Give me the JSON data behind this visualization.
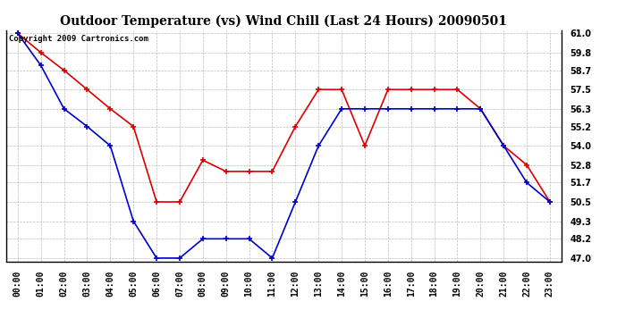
{
  "title": "Outdoor Temperature (vs) Wind Chill (Last 24 Hours) 20090501",
  "copyright": "Copyright 2009 Cartronics.com",
  "x_labels": [
    "00:00",
    "01:00",
    "02:00",
    "03:00",
    "04:00",
    "05:00",
    "06:00",
    "07:00",
    "08:00",
    "09:00",
    "10:00",
    "11:00",
    "12:00",
    "13:00",
    "14:00",
    "15:00",
    "16:00",
    "17:00",
    "18:00",
    "19:00",
    "20:00",
    "21:00",
    "22:00",
    "23:00"
  ],
  "temp": [
    61.0,
    59.8,
    58.7,
    57.5,
    56.3,
    55.2,
    50.5,
    50.5,
    53.1,
    52.4,
    52.4,
    52.4,
    55.2,
    57.5,
    57.5,
    54.0,
    57.5,
    57.5,
    57.5,
    57.5,
    56.3,
    54.0,
    52.8,
    50.5
  ],
  "windchill": [
    61.0,
    59.0,
    56.3,
    55.2,
    54.0,
    49.3,
    47.0,
    47.0,
    48.2,
    48.2,
    48.2,
    47.0,
    50.5,
    54.0,
    56.3,
    56.3,
    56.3,
    56.3,
    56.3,
    56.3,
    56.3,
    54.0,
    51.7,
    50.5
  ],
  "ylim_min": 47.0,
  "ylim_max": 61.0,
  "yticks": [
    47.0,
    48.2,
    49.3,
    50.5,
    51.7,
    52.8,
    54.0,
    55.2,
    56.3,
    57.5,
    58.7,
    59.8,
    61.0
  ],
  "temp_color": "#dd0000",
  "windchill_color": "#0000cc",
  "bg_color": "#ffffff",
  "plot_bg_color": "#ffffff",
  "grid_color": "#bbbbbb",
  "title_fontsize": 10,
  "copyright_fontsize": 6.5,
  "tick_fontsize": 7,
  "line_width": 1.2,
  "marker_size": 4
}
